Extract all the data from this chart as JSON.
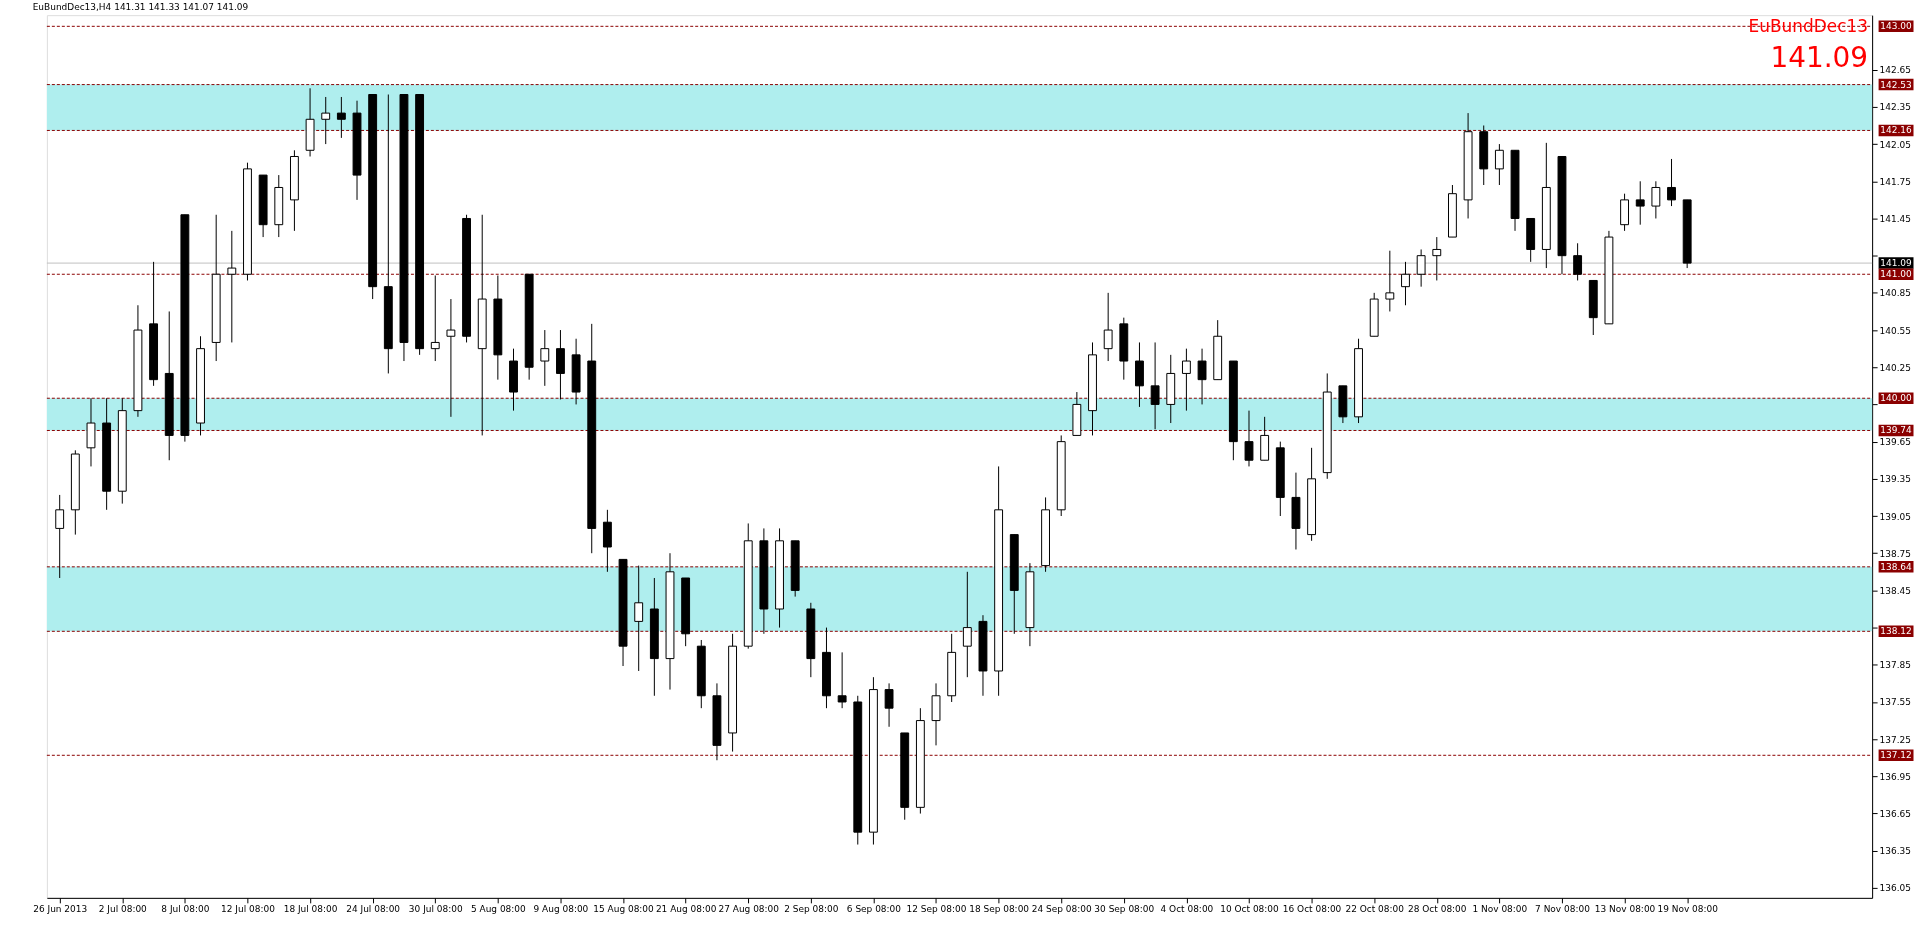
{
  "chart_data": {
    "type": "candlestick",
    "title": "EuBundDec13,H4  141.31 141.33 141.07 141.09",
    "annotations": [
      "EuBundDec13",
      "141.09"
    ],
    "categories": [
      "26 Jun 2013",
      null,
      null,
      null,
      "2 Jul 08:00",
      null,
      null,
      null,
      "8 Jul 08:00",
      null,
      null,
      null,
      "12 Jul 08:00",
      null,
      null,
      null,
      "18 Jul 08:00",
      null,
      null,
      null,
      "24 Jul 08:00",
      null,
      null,
      null,
      "30 Jul 08:00",
      null,
      null,
      null,
      "5 Aug 08:00",
      null,
      null,
      null,
      "9 Aug 08:00",
      null,
      null,
      null,
      "15 Aug 08:00",
      null,
      null,
      null,
      "21 Aug 08:00",
      null,
      null,
      null,
      "27 Aug 08:00",
      null,
      null,
      null,
      "2 Sep 08:00",
      null,
      null,
      null,
      "6 Sep 08:00",
      null,
      null,
      null,
      "12 Sep 08:00",
      null,
      null,
      null,
      "18 Sep 08:00",
      null,
      null,
      null,
      "24 Sep 08:00",
      null,
      null,
      null,
      "30 Sep 08:00",
      null,
      null,
      null,
      "4 Oct 08:00",
      null,
      null,
      null,
      "10 Oct 08:00",
      null,
      null,
      null,
      "16 Oct 08:00",
      null,
      null,
      null,
      "22 Oct 08:00",
      null,
      null,
      null,
      "28 Oct 08:00",
      null,
      null,
      null,
      "1 Nov 08:00",
      null,
      null,
      null,
      "7 Nov 08:00",
      null,
      null,
      null,
      "13 Nov 08:00",
      null,
      null,
      null,
      "19 Nov 08:00",
      null,
      null,
      null,
      null,
      null,
      null,
      null,
      null,
      null,
      null,
      null
    ],
    "ohlc": [
      [
        138.95,
        139.22,
        138.55,
        139.1
      ],
      [
        139.1,
        139.58,
        138.9,
        139.55
      ],
      [
        139.6,
        140.0,
        139.45,
        139.8
      ],
      [
        139.8,
        140.0,
        139.1,
        139.25
      ],
      [
        139.25,
        140.0,
        139.15,
        139.9
      ],
      [
        139.9,
        140.75,
        139.85,
        140.55
      ],
      [
        140.6,
        141.1,
        140.1,
        140.15
      ],
      [
        140.2,
        140.7,
        139.5,
        139.7
      ],
      [
        141.48,
        141.48,
        139.65,
        139.7
      ],
      [
        139.8,
        140.5,
        139.7,
        140.4
      ],
      [
        140.45,
        141.48,
        140.3,
        141.0
      ],
      [
        141.0,
        141.35,
        140.45,
        141.05
      ],
      [
        141.0,
        141.9,
        140.95,
        141.85
      ],
      [
        141.8,
        141.8,
        141.3,
        141.4
      ],
      [
        141.4,
        141.8,
        141.3,
        141.7
      ],
      [
        141.6,
        142.0,
        141.35,
        141.95
      ],
      [
        142.0,
        142.5,
        141.95,
        142.25
      ],
      [
        142.25,
        142.43,
        142.05,
        142.3
      ],
      [
        142.3,
        142.43,
        142.1,
        142.25
      ],
      [
        142.3,
        142.4,
        141.6,
        141.8
      ],
      [
        142.45,
        142.45,
        140.8,
        140.9
      ],
      [
        140.9,
        142.45,
        140.2,
        140.4
      ],
      [
        142.45,
        142.45,
        140.3,
        140.45
      ],
      [
        142.45,
        142.45,
        140.35,
        140.4
      ],
      [
        140.4,
        140.99,
        140.3,
        140.45
      ],
      [
        140.5,
        140.8,
        139.85,
        140.55
      ],
      [
        141.45,
        141.48,
        140.45,
        140.5
      ],
      [
        140.4,
        141.48,
        139.7,
        140.8
      ],
      [
        140.8,
        140.99,
        140.15,
        140.35
      ],
      [
        140.3,
        140.4,
        139.9,
        140.05
      ],
      [
        141.0,
        141.0,
        140.15,
        140.25
      ],
      [
        140.3,
        140.55,
        140.1,
        140.4
      ],
      [
        140.4,
        140.55,
        139.99,
        140.2
      ],
      [
        140.35,
        140.48,
        139.95,
        140.05
      ],
      [
        140.3,
        140.6,
        138.75,
        138.95
      ],
      [
        139.0,
        139.1,
        138.6,
        138.8
      ],
      [
        138.7,
        138.7,
        137.84,
        138.0
      ],
      [
        138.2,
        138.65,
        137.8,
        138.35
      ],
      [
        138.3,
        138.55,
        137.6,
        137.9
      ],
      [
        137.9,
        138.75,
        137.65,
        138.6
      ],
      [
        138.55,
        138.55,
        138.0,
        138.1
      ],
      [
        138.0,
        138.05,
        137.5,
        137.6
      ],
      [
        137.6,
        137.7,
        137.08,
        137.2
      ],
      [
        137.3,
        138.1,
        137.15,
        138.0
      ],
      [
        138.0,
        138.99,
        137.98,
        138.85
      ],
      [
        138.85,
        138.95,
        138.1,
        138.3
      ],
      [
        138.3,
        138.95,
        138.15,
        138.85
      ],
      [
        138.85,
        138.85,
        138.4,
        138.45
      ],
      [
        138.3,
        138.35,
        137.75,
        137.9
      ],
      [
        137.95,
        138.15,
        137.5,
        137.6
      ],
      [
        137.6,
        137.95,
        137.5,
        137.55
      ],
      [
        137.55,
        137.6,
        136.4,
        136.5
      ],
      [
        136.5,
        137.75,
        136.4,
        137.65
      ],
      [
        137.65,
        137.7,
        137.35,
        137.5
      ],
      [
        137.3,
        137.3,
        136.6,
        136.7
      ],
      [
        136.7,
        137.5,
        136.65,
        137.4
      ],
      [
        137.4,
        137.7,
        137.2,
        137.6
      ],
      [
        137.6,
        138.1,
        137.55,
        137.95
      ],
      [
        138.0,
        138.6,
        137.75,
        138.15
      ],
      [
        138.2,
        138.25,
        137.6,
        137.8
      ],
      [
        137.8,
        139.45,
        137.6,
        139.1
      ],
      [
        138.9,
        138.9,
        138.1,
        138.45
      ],
      [
        138.15,
        138.67,
        138.0,
        138.6
      ],
      [
        138.65,
        139.2,
        138.6,
        139.1
      ],
      [
        139.1,
        139.7,
        139.05,
        139.65
      ],
      [
        139.7,
        140.05,
        139.7,
        139.95
      ],
      [
        139.9,
        140.45,
        139.7,
        140.35
      ],
      [
        140.4,
        140.85,
        140.3,
        140.55
      ],
      [
        140.6,
        140.65,
        140.15,
        140.3
      ],
      [
        140.3,
        140.45,
        139.93,
        140.1
      ],
      [
        140.1,
        140.45,
        139.75,
        139.95
      ],
      [
        139.95,
        140.35,
        139.8,
        140.2
      ],
      [
        140.2,
        140.4,
        139.9,
        140.3
      ],
      [
        140.3,
        140.4,
        139.95,
        140.15
      ],
      [
        140.15,
        140.63,
        140.15,
        140.5
      ],
      [
        140.3,
        140.3,
        139.5,
        139.65
      ],
      [
        139.65,
        139.9,
        139.45,
        139.5
      ],
      [
        139.5,
        139.85,
        139.5,
        139.7
      ],
      [
        139.6,
        139.65,
        139.05,
        139.2
      ],
      [
        139.2,
        139.4,
        138.78,
        138.95
      ],
      [
        138.9,
        139.6,
        138.85,
        139.35
      ],
      [
        139.4,
        140.2,
        139.35,
        140.05
      ],
      [
        140.1,
        140.1,
        139.8,
        139.85
      ],
      [
        139.85,
        140.48,
        139.8,
        140.4
      ],
      [
        140.5,
        140.85,
        140.5,
        140.8
      ],
      [
        140.8,
        141.19,
        140.7,
        140.85
      ],
      [
        140.9,
        141.1,
        140.75,
        141.0
      ],
      [
        141.0,
        141.2,
        140.9,
        141.15
      ],
      [
        141.15,
        141.3,
        140.95,
        141.2
      ],
      [
        141.3,
        141.72,
        141.3,
        141.65
      ],
      [
        141.6,
        142.3,
        141.45,
        142.15
      ],
      [
        142.15,
        142.2,
        141.72,
        141.85
      ],
      [
        141.85,
        142.05,
        141.72,
        142.0
      ],
      [
        142.0,
        142.0,
        141.35,
        141.45
      ],
      [
        141.45,
        141.45,
        141.1,
        141.2
      ],
      [
        141.2,
        142.06,
        141.05,
        141.7
      ],
      [
        141.95,
        141.95,
        141.0,
        141.15
      ],
      [
        141.15,
        141.25,
        140.95,
        141.0
      ],
      [
        140.95,
        140.95,
        140.51,
        140.65
      ],
      [
        140.6,
        141.35,
        140.6,
        141.3
      ],
      [
        141.4,
        141.65,
        141.35,
        141.6
      ],
      [
        141.6,
        141.75,
        141.4,
        141.55
      ],
      [
        141.55,
        141.75,
        141.45,
        141.7
      ],
      [
        141.7,
        141.93,
        141.55,
        141.6
      ],
      [
        141.6,
        141.6,
        141.05,
        141.09
      ],
      null,
      null,
      null,
      null,
      null,
      null,
      null,
      null,
      null,
      null,
      null
    ],
    "ylim": [
      135.97,
      143.09
    ],
    "yticks": [
      142.65,
      142.35,
      142.05,
      141.75,
      141.45,
      {
        "value": 141.15,
        "label": null
      },
      140.85,
      140.55,
      140.25,
      {
        "value": 139.95,
        "label": null
      },
      139.65,
      139.35,
      139.05,
      138.75,
      138.45,
      {
        "value": 138.15,
        "label": null
      },
      137.85,
      137.55,
      137.25,
      136.95,
      136.65,
      136.35,
      136.05
    ],
    "bands": [
      {
        "axis": "y",
        "from": 142.16,
        "to": 142.53,
        "color": "#afeeee"
      },
      {
        "axis": "y",
        "from": 139.74,
        "to": 140.0,
        "color": "#afeeee"
      },
      {
        "axis": "y",
        "from": 138.12,
        "to": 138.64,
        "color": "#afeeee"
      }
    ],
    "ref_lines": [
      {
        "axis": "y",
        "value": 143.0,
        "label": "143.00",
        "color": "#8b0000",
        "line_style": "dashed"
      },
      {
        "axis": "y",
        "value": 142.53,
        "label": "142.53",
        "color": "#8b0000",
        "line_style": "dashed"
      },
      {
        "axis": "y",
        "value": 142.16,
        "label": "142.16",
        "color": "#8b0000",
        "line_style": "dashed"
      },
      {
        "axis": "y",
        "value": 141.09,
        "label": "141.09",
        "color": "#c0c0c0",
        "line_style": "solid"
      },
      {
        "axis": "y",
        "value": 141.0,
        "label": "141.00",
        "color": "#8b0000",
        "line_style": "dashed"
      },
      {
        "axis": "y",
        "value": 140.0,
        "label": "140.00",
        "color": "#8b0000",
        "line_style": "dashed"
      },
      {
        "axis": "y",
        "value": 139.74,
        "label": "139.74",
        "color": "#8b0000",
        "line_style": "dashed"
      },
      {
        "axis": "y",
        "value": 138.64,
        "label": "138.64",
        "color": "#8b0000",
        "line_style": "dashed"
      },
      {
        "axis": "y",
        "value": 138.12,
        "label": "138.12",
        "color": "#8b0000",
        "line_style": "dashed"
      },
      {
        "axis": "y",
        "value": 137.12,
        "label": "137.12",
        "color": "#8b0000",
        "line_style": "dashed"
      }
    ],
    "grid": false
  }
}
